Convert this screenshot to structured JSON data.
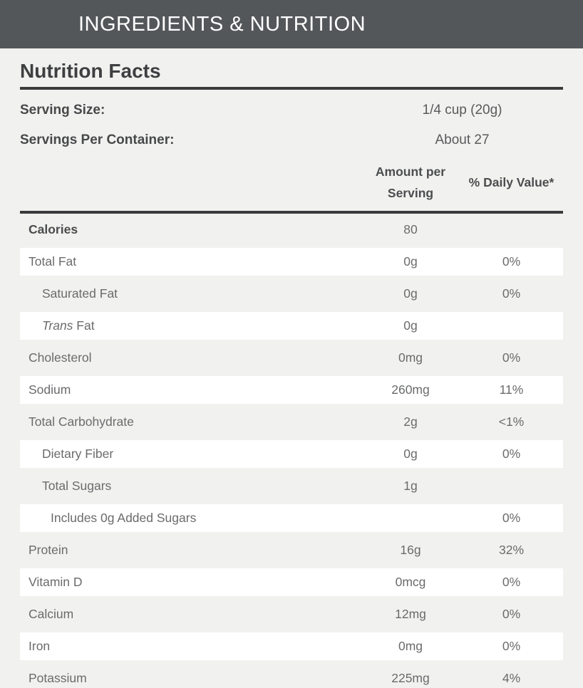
{
  "header": {
    "title": "INGREDIENTS & NUTRITION"
  },
  "panel": {
    "title": "Nutrition Facts",
    "serving": [
      {
        "label": "Serving Size:",
        "value": "1/4 cup (20g)"
      },
      {
        "label": "Servings Per Container:",
        "value": "About 27"
      }
    ],
    "columns": {
      "amount": "Amount per Serving",
      "daily_value": "% Daily Value*"
    },
    "rows": [
      {
        "label": "Calories",
        "amount": "80",
        "dv": ""
      },
      {
        "label": "Total Fat",
        "amount": "0g",
        "dv": "0%"
      },
      {
        "label": "Saturated Fat",
        "amount": "0g",
        "dv": "0%"
      },
      {
        "label_italic": "Trans",
        "label_rest": " Fat",
        "amount": "0g",
        "dv": ""
      },
      {
        "label": "Cholesterol",
        "amount": "0mg",
        "dv": "0%"
      },
      {
        "label": "Sodium",
        "amount": "260mg",
        "dv": "11%"
      },
      {
        "label": "Total Carbohydrate",
        "amount": "2g",
        "dv": "<1%"
      },
      {
        "label": "Dietary Fiber",
        "amount": "0g",
        "dv": "0%"
      },
      {
        "label": "Total Sugars",
        "amount": "1g",
        "dv": ""
      },
      {
        "label": "Includes 0g Added Sugars",
        "amount": "",
        "dv": "0%"
      },
      {
        "label": "Protein",
        "amount": "16g",
        "dv": "32%"
      },
      {
        "label": "Vitamin D",
        "amount": "0mcg",
        "dv": "0%"
      },
      {
        "label": "Calcium",
        "amount": "12mg",
        "dv": "0%"
      },
      {
        "label": "Iron",
        "amount": "0mg",
        "dv": "0%"
      },
      {
        "label": "Potassium",
        "amount": "225mg",
        "dv": "4%"
      }
    ],
    "colors": {
      "header_bar": "#54575a",
      "page_background": "#f1f1ef",
      "row_alt_background": "#ffffff",
      "divider_rule": "#3a3b3d",
      "title_text": "#3e3f41",
      "body_text": "#6a6b6d"
    }
  }
}
